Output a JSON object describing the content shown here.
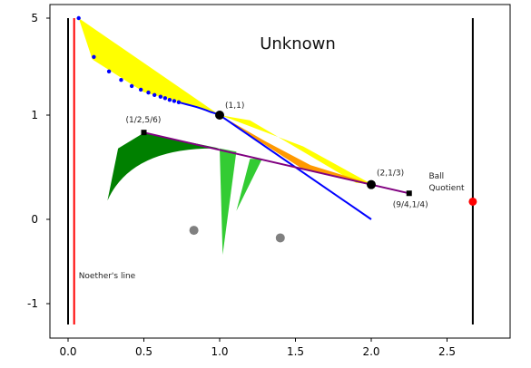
{
  "chart_data": {
    "type": "scatter",
    "title": "Unknown",
    "xlabel": "",
    "ylabel": "",
    "x_ticks": [
      0.0,
      0.5,
      1.0,
      1.5,
      2.0,
      2.5
    ],
    "x_tick_labels": [
      "0.0",
      "0.5",
      "1.0",
      "1.5",
      "2.0",
      "2.5"
    ],
    "y_ticks": [
      5,
      1,
      0,
      -1
    ],
    "y_tick_labels": [
      "5",
      "1",
      "0",
      "-1"
    ],
    "xlim": [
      -0.12,
      2.8
    ],
    "grid": false,
    "colors": {
      "yellow_region": "#ffff00",
      "orange_region": "#ff9900",
      "dark_green_region": "#008000",
      "light_green_region": "#33cc33",
      "blue_series": "#0000ff",
      "purple_line": "#800080",
      "red_line": "#ff0000",
      "black_line": "#000000",
      "gray_points": "#808080"
    },
    "vertical_lines": [
      {
        "name": "left-black",
        "x": 0.0,
        "color": "#000000"
      },
      {
        "name": "noether-red",
        "x": 0.04,
        "color": "#ff0000"
      },
      {
        "name": "right-black",
        "x": 2.67,
        "color": "#000000"
      }
    ],
    "blue_points": [
      [
        0.07,
        5.0
      ],
      [
        0.17,
        3.4
      ],
      [
        0.27,
        2.8
      ],
      [
        0.35,
        2.45
      ],
      [
        0.42,
        2.2
      ],
      [
        0.48,
        2.05
      ],
      [
        0.53,
        1.93
      ],
      [
        0.57,
        1.83
      ],
      [
        0.61,
        1.76
      ],
      [
        0.64,
        1.7
      ],
      [
        0.67,
        1.63
      ],
      [
        0.7,
        1.58
      ],
      [
        0.73,
        1.53
      ],
      [
        0.76,
        1.48
      ],
      [
        0.79,
        1.43
      ],
      [
        0.82,
        1.38
      ],
      [
        0.85,
        1.33
      ],
      [
        0.88,
        1.27
      ],
      [
        0.91,
        1.2
      ],
      [
        0.94,
        1.13
      ],
      [
        0.97,
        1.07
      ],
      [
        1.0,
        1.0
      ]
    ],
    "blue_line": [
      [
        1.0,
        1.0
      ],
      [
        2.0,
        0.0
      ]
    ],
    "purple_line": [
      [
        0.5,
        0.8333
      ],
      [
        2.0,
        0.3333
      ],
      [
        2.25,
        0.25
      ]
    ],
    "gray_points": [
      [
        0.83,
        -0.13
      ],
      [
        1.4,
        -0.22
      ]
    ],
    "ball_quotient_point": [
      2.67,
      0.17
    ],
    "labeled_points": [
      {
        "x": 1.0,
        "y": 1.0,
        "label": "(1,1)"
      },
      {
        "x": 0.5,
        "y": 0.8333,
        "label": "(1/2,5/6)"
      },
      {
        "x": 2.0,
        "y": 0.3333,
        "label": "(2,1/3)"
      },
      {
        "x": 2.25,
        "y": 0.25,
        "label": "(9/4,1/4)"
      }
    ],
    "annotations": [
      {
        "text": "Noether's line",
        "x": 0.07,
        "y": -0.7
      },
      {
        "text": "Ball",
        "x": 2.38,
        "y": 0.39
      },
      {
        "text": "Quotient",
        "x": 2.38,
        "y": 0.28
      }
    ]
  }
}
